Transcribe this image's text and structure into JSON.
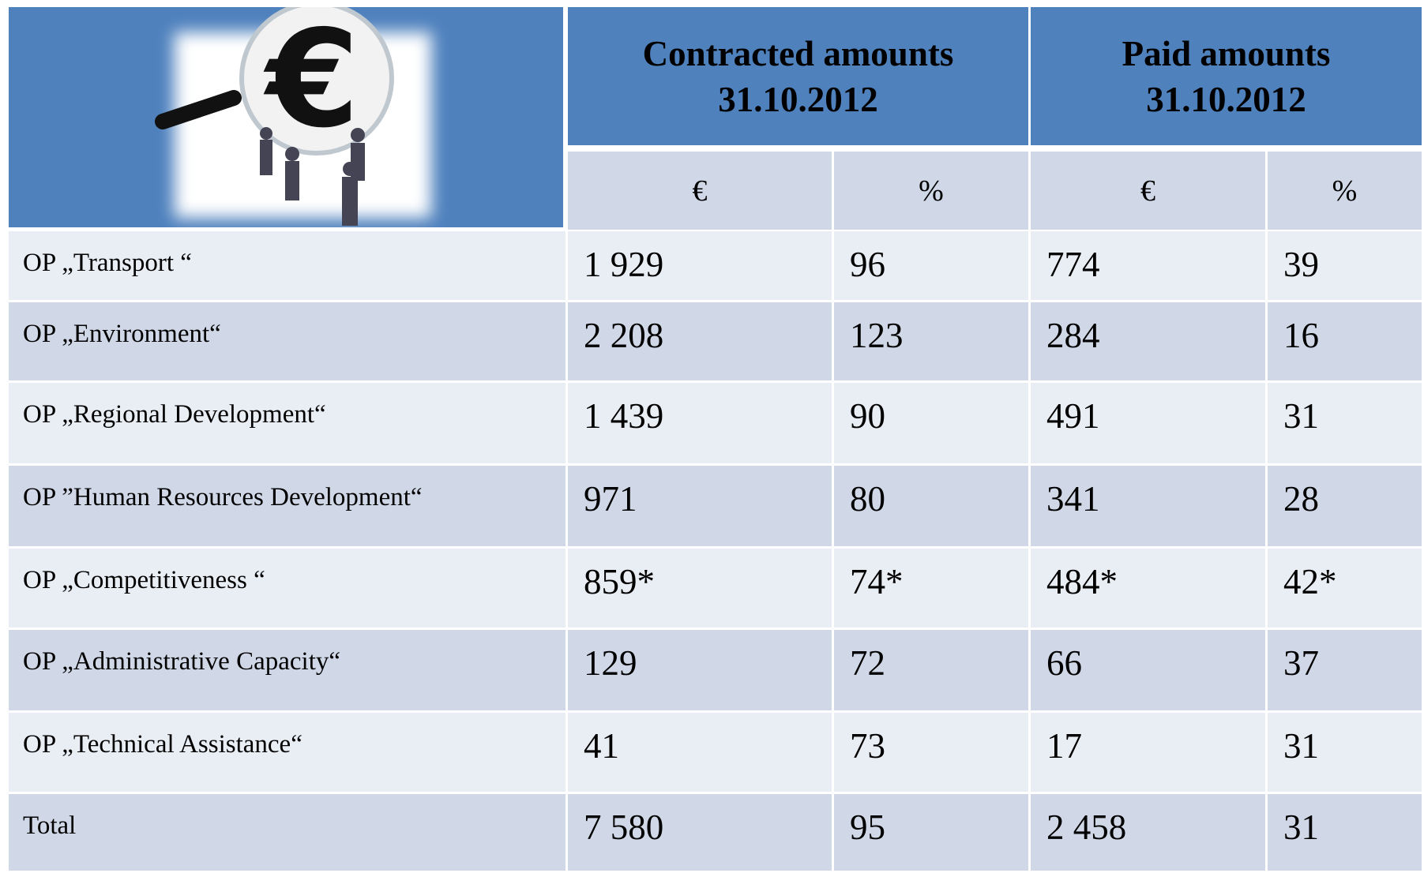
{
  "header": {
    "groups": [
      {
        "title": "Contracted amounts",
        "date": "31.10.2012"
      },
      {
        "title": "Paid amounts",
        "date": "31.10.2012"
      }
    ],
    "units": [
      "€",
      "%",
      "€",
      "%"
    ]
  },
  "table": {
    "rows": [
      [
        "OP „Transport “",
        "1 929",
        "96",
        "774",
        "39"
      ],
      [
        "OP „Environment“",
        "2 208",
        "123",
        "284",
        "16"
      ],
      [
        "OP „Regional Development“",
        "1 439",
        "90",
        "491",
        "31"
      ],
      [
        "OP ”Human Resources Development“",
        "971",
        "80",
        "341",
        "28"
      ],
      [
        "OP „Competitiveness “",
        "859*",
        "74*",
        "484*",
        "42*"
      ],
      [
        "OP „Administrative Capacity“",
        "129",
        "72",
        "66",
        "37"
      ],
      [
        "OP „Technical Assistance“",
        "41",
        "73",
        "17",
        "31"
      ],
      [
        "Total",
        "7 580",
        "95",
        "2 458",
        "31"
      ]
    ]
  }
}
